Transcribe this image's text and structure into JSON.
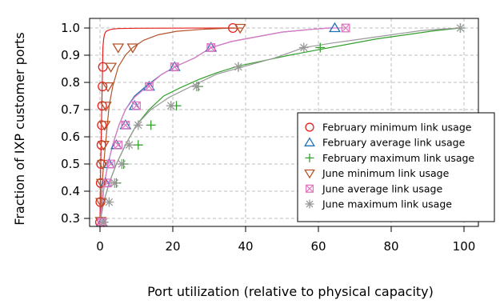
{
  "chart_data": {
    "type": "line",
    "xlabel": "Port utilization (relative to physical capacity)",
    "ylabel": "Fraction of IXP customer ports",
    "xlim": [
      0,
      100
    ],
    "ylim": [
      0.3,
      1.0
    ],
    "xticks": [
      0,
      20,
      40,
      60,
      80,
      100
    ],
    "yticks": [
      0.3,
      0.4,
      0.5,
      0.6,
      0.7,
      0.8,
      0.9,
      1.0
    ],
    "xtick_labels": [
      "0",
      "20",
      "40",
      "60",
      "80",
      "100"
    ],
    "ytick_labels": [
      "0.3",
      "0.4",
      "0.5",
      "0.6",
      "0.7",
      "0.8",
      "0.9",
      "1.0"
    ],
    "grid": true,
    "legend_position": "lower-right",
    "series": [
      {
        "name": "February minimum link usage",
        "color": "#e8201f",
        "marker": "circle",
        "x": [
          0,
          0.05,
          0.1,
          0.2,
          0.3,
          0.4,
          0.5,
          0.6,
          0.7,
          0.8,
          1.0,
          1.2,
          1.5,
          2,
          3,
          5,
          10,
          36,
          37
        ],
        "y": [
          0.286,
          0.36,
          0.43,
          0.5,
          0.57,
          0.643,
          0.714,
          0.785,
          0.857,
          0.928,
          0.96,
          0.975,
          0.985,
          0.99,
          0.995,
          0.998,
          0.999,
          1.0,
          1.0
        ],
        "markers_x": [
          0,
          0.1,
          0.2,
          0.3,
          0.4,
          0.5,
          0.6,
          0.7,
          0.8,
          36.5
        ],
        "markers_y": [
          0.286,
          0.36,
          0.43,
          0.5,
          0.57,
          0.643,
          0.714,
          0.785,
          0.857,
          1.0
        ]
      },
      {
        "name": "February average link usage",
        "color": "#2171b5",
        "marker": "triangle-up",
        "x": [
          0,
          0.6,
          1.2,
          2.2,
          3.5,
          5.2,
          7,
          9.5,
          13,
          17,
          21,
          26,
          30.5,
          36,
          42,
          50,
          58,
          63,
          64
        ],
        "y": [
          0.286,
          0.35,
          0.43,
          0.5,
          0.57,
          0.643,
          0.7,
          0.75,
          0.79,
          0.83,
          0.86,
          0.89,
          0.928,
          0.95,
          0.965,
          0.985,
          0.995,
          1.0,
          1.0
        ],
        "markers_x": [
          0.5,
          1.5,
          2.5,
          4.5,
          7,
          9.5,
          13.5,
          20.5,
          30.5,
          64.5
        ],
        "markers_y": [
          0.286,
          0.43,
          0.5,
          0.57,
          0.643,
          0.714,
          0.785,
          0.857,
          0.928,
          1.0
        ]
      },
      {
        "name": "February maximum link usage",
        "color": "#33a02c",
        "marker": "plus",
        "x": [
          0,
          1,
          2.5,
          4.5,
          7,
          10,
          13.5,
          17.5,
          22,
          27,
          32,
          38,
          45,
          52,
          60,
          68,
          76,
          84,
          92,
          99
        ],
        "y": [
          0.286,
          0.36,
          0.43,
          0.5,
          0.57,
          0.643,
          0.7,
          0.75,
          0.78,
          0.81,
          0.835,
          0.86,
          0.88,
          0.9,
          0.92,
          0.94,
          0.96,
          0.975,
          0.99,
          1.0
        ],
        "markers_x": [
          1,
          4.5,
          6.5,
          10.5,
          14,
          21,
          27,
          38,
          60.5,
          99
        ],
        "markers_y": [
          0.286,
          0.43,
          0.5,
          0.57,
          0.643,
          0.714,
          0.785,
          0.857,
          0.928,
          1.0
        ]
      },
      {
        "name": "June minimum link usage",
        "color": "#b5542a",
        "marker": "triangle-down",
        "x": [
          0,
          0.3,
          0.6,
          1.0,
          1.5,
          2.0,
          2.5,
          3.5,
          5,
          7,
          9,
          12,
          16,
          21,
          28,
          35,
          39
        ],
        "y": [
          0.286,
          0.36,
          0.43,
          0.5,
          0.57,
          0.643,
          0.714,
          0.785,
          0.857,
          0.9,
          0.928,
          0.955,
          0.975,
          0.988,
          0.995,
          0.999,
          1.0
        ],
        "markers_x": [
          0.2,
          0.3,
          0.5,
          0.8,
          1.0,
          1.3,
          1.6,
          2.2,
          3.0,
          5.0,
          9.0,
          38.5
        ],
        "markers_y": [
          0.29,
          0.36,
          0.43,
          0.5,
          0.57,
          0.643,
          0.714,
          0.785,
          0.857,
          0.928,
          0.928,
          1.0
        ]
      },
      {
        "name": "June average link usage",
        "color": "#e377c2",
        "marker": "box-x",
        "x": [
          0,
          0.5,
          1.2,
          2.2,
          3.5,
          5.2,
          7,
          9.5,
          13,
          17,
          21,
          26,
          30.5,
          36,
          42,
          50,
          58,
          63,
          67
        ],
        "y": [
          0.286,
          0.35,
          0.43,
          0.5,
          0.57,
          0.643,
          0.7,
          0.745,
          0.785,
          0.83,
          0.86,
          0.89,
          0.928,
          0.95,
          0.965,
          0.985,
          0.995,
          1.0,
          1.0
        ],
        "markers_x": [
          0.5,
          2,
          3,
          5,
          7,
          10,
          13.5,
          20.5,
          30.5,
          67.5
        ],
        "markers_y": [
          0.286,
          0.43,
          0.5,
          0.57,
          0.643,
          0.714,
          0.785,
          0.857,
          0.928,
          1.0
        ]
      },
      {
        "name": "June maximum link usage",
        "color": "#999999",
        "marker": "asterisk",
        "x": [
          0,
          1,
          2.5,
          4.5,
          7,
          10,
          14,
          19,
          25,
          32,
          40,
          48,
          56,
          64,
          72,
          80,
          88,
          95,
          99
        ],
        "y": [
          0.286,
          0.36,
          0.43,
          0.5,
          0.57,
          0.643,
          0.7,
          0.745,
          0.785,
          0.83,
          0.86,
          0.89,
          0.928,
          0.945,
          0.96,
          0.975,
          0.99,
          0.997,
          1.0
        ],
        "markers_x": [
          1,
          2.5,
          4,
          6,
          8,
          10.5,
          19.5,
          26.5,
          38,
          56,
          99
        ],
        "markers_y": [
          0.286,
          0.36,
          0.43,
          0.5,
          0.57,
          0.643,
          0.714,
          0.785,
          0.857,
          0.928,
          1.0
        ]
      }
    ]
  }
}
